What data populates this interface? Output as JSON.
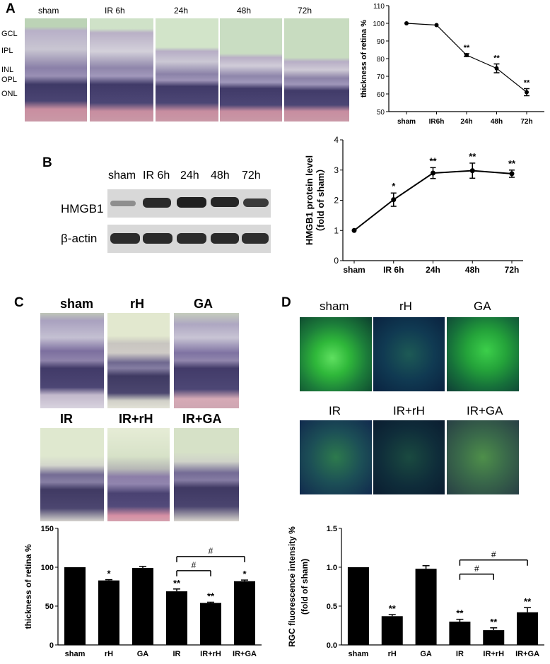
{
  "panels": {
    "a": {
      "letter": "A",
      "image_labels": [
        "sham",
        "IR 6h",
        "24h",
        "48h",
        "72h"
      ],
      "layer_labels": [
        "GCL",
        "IPL",
        "INL",
        "OPL",
        "ONL"
      ]
    },
    "b": {
      "letter": "B",
      "lane_labels": [
        "sham",
        "IR 6h",
        "24h",
        "48h",
        "72h"
      ],
      "band_labels": [
        "HMGB1",
        "β-actin"
      ]
    },
    "c": {
      "letter": "C",
      "image_labels": [
        "sham",
        "rH",
        "GA",
        "IR",
        "IR+rH",
        "IR+GA"
      ]
    },
    "d": {
      "letter": "D",
      "image_labels": [
        "sham",
        "rH",
        "GA",
        "IR",
        "IR+rH",
        "IR+GA"
      ]
    }
  },
  "chart_data": [
    {
      "id": "A-line",
      "type": "line",
      "categories": [
        "sham",
        "IR6h",
        "24h",
        "48h",
        "72h"
      ],
      "values": [
        100,
        99,
        82,
        74.5,
        61
      ],
      "errors": [
        0,
        0,
        0.8,
        2.5,
        2
      ],
      "significance": [
        "",
        "",
        "**",
        "**",
        "**"
      ],
      "ylabel": "thickness of retina %",
      "ylim": [
        50,
        110
      ],
      "yticks": [
        50,
        60,
        70,
        80,
        90,
        100,
        110
      ]
    },
    {
      "id": "B-line",
      "type": "line",
      "categories": [
        "sham",
        "IR 6h",
        "24h",
        "48h",
        "72h"
      ],
      "values": [
        1,
        2.02,
        2.9,
        2.98,
        2.88
      ],
      "errors": [
        0,
        0.22,
        0.18,
        0.25,
        0.12
      ],
      "significance": [
        "",
        "*",
        "**",
        "**",
        "**"
      ],
      "ylabel": "HMGB1 protein level",
      "ylabel2": "（fold of sham）",
      "ylim": [
        0,
        4
      ],
      "yticks": [
        0,
        1,
        2,
        3,
        4
      ]
    },
    {
      "id": "C-bar",
      "type": "bar",
      "categories": [
        "sham",
        "rH",
        "GA",
        "IR",
        "IR+rH",
        "IR+GA"
      ],
      "values": [
        100,
        83,
        99,
        69,
        54,
        82
      ],
      "errors": [
        0,
        1,
        2,
        3,
        1,
        1.5
      ],
      "significance": [
        "",
        "*",
        "",
        "**",
        "**",
        "*"
      ],
      "comparisons": [
        {
          "from": "IR",
          "to": "IR+rH",
          "label": "#"
        },
        {
          "from": "IR",
          "to": "IR+GA",
          "label": "#"
        }
      ],
      "ylabel": "thickness of retina %",
      "ylim": [
        0,
        150
      ],
      "yticks": [
        0,
        50,
        100,
        150
      ]
    },
    {
      "id": "D-bar",
      "type": "bar",
      "categories": [
        "sham",
        "rH",
        "GA",
        "IR",
        "IR+rH",
        "IR+GA"
      ],
      "values": [
        1.0,
        0.37,
        0.98,
        0.3,
        0.19,
        0.42
      ],
      "errors": [
        0,
        0.02,
        0.04,
        0.03,
        0.03,
        0.06
      ],
      "significance": [
        "",
        "**",
        "",
        "**",
        "**",
        "**"
      ],
      "comparisons": [
        {
          "from": "IR",
          "to": "IR+rH",
          "label": "#"
        },
        {
          "from": "IR",
          "to": "IR+GA",
          "label": "#"
        }
      ],
      "ylabel": "RGC fluorescence intensity %",
      "ylabel2": "(fold of sham)",
      "ylim": [
        0,
        1.5
      ],
      "yticks": [
        0.0,
        0.5,
        1.0,
        1.5
      ]
    }
  ]
}
